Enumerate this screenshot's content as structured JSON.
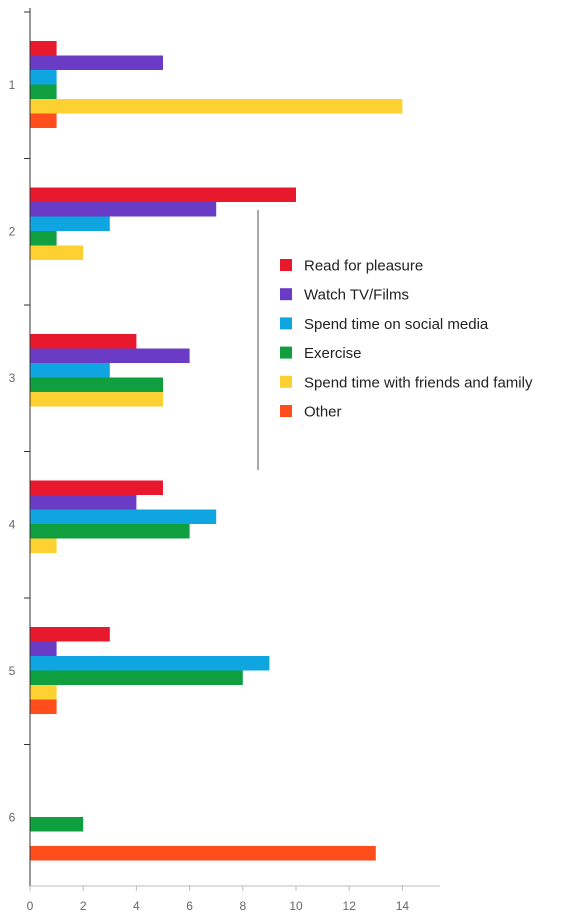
{
  "chart_data": {
    "type": "bar",
    "orientation": "horizontal",
    "title": "",
    "xlabel": "",
    "ylabel": "",
    "categories": [
      "1",
      "2",
      "3",
      "4",
      "5",
      "6"
    ],
    "xlim": [
      0,
      15
    ],
    "xticks": [
      "0",
      "2",
      "4",
      "6",
      "8",
      "10",
      "12",
      "14"
    ],
    "grid": false,
    "legend_position": "right",
    "series": [
      {
        "name": "Read for pleasure",
        "color": "#e8192c",
        "values": [
          1,
          10,
          4,
          5,
          3,
          0
        ]
      },
      {
        "name": "Watch TV/Films",
        "color": "#6a3bc4",
        "values": [
          5,
          7,
          6,
          4,
          1,
          0
        ]
      },
      {
        "name": "Spend time on social media",
        "color": "#0ea5e0",
        "values": [
          1,
          3,
          3,
          7,
          9,
          0
        ]
      },
      {
        "name": "Exercise",
        "color": "#0f9f3f",
        "values": [
          1,
          1,
          5,
          6,
          8,
          2
        ]
      },
      {
        "name": "Spend time with friends and family",
        "color": "#fdd131",
        "values": [
          14,
          2,
          5,
          1,
          1,
          0
        ]
      },
      {
        "name": "Other",
        "color": "#ff4e1c",
        "values": [
          1,
          0,
          0,
          0,
          1,
          13
        ]
      }
    ]
  }
}
